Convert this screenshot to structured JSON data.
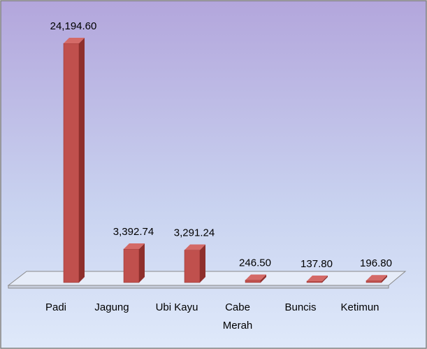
{
  "chart_data": {
    "type": "bar",
    "categories": [
      "Padi",
      "Jagung",
      "Ubi Kayu",
      "Cabe Merah",
      "Buncis",
      "Ketimun"
    ],
    "values": [
      24194.6,
      3392.74,
      3291.24,
      246.5,
      137.8,
      196.8
    ],
    "value_labels": [
      "24,194.60",
      "3,392.74",
      "3,291.24",
      "246.50",
      "137.80",
      "196.80"
    ],
    "color": "#c0504d"
  }
}
